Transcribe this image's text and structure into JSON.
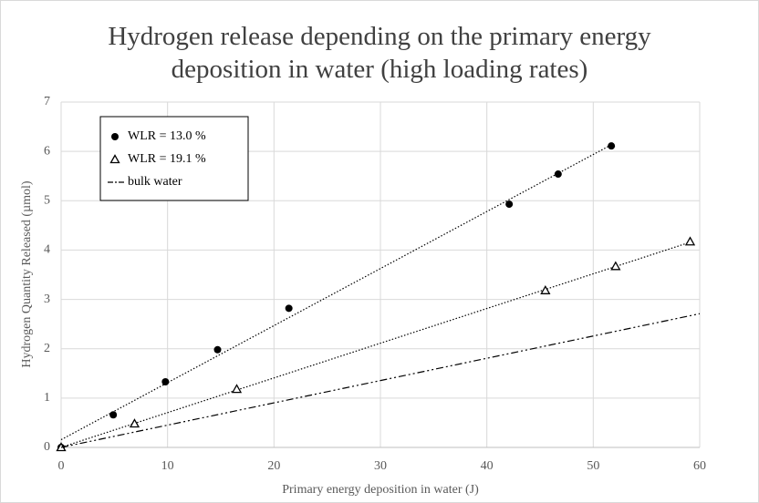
{
  "chart_data": {
    "type": "scatter",
    "title": "Hydrogen release depending on the primary energy deposition in water (high loading rates)",
    "xlabel": "Primary energy deposition in water (J)",
    "ylabel": "Hydrogen Quantity Released (µmol)",
    "xlim": [
      0,
      60
    ],
    "xticks": [
      0,
      10,
      20,
      30,
      40,
      50,
      60
    ],
    "ylim": [
      0,
      7
    ],
    "yticks": [
      0,
      1,
      2,
      3,
      4,
      5,
      6,
      7
    ],
    "grid": true,
    "legend": "top-left",
    "series": [
      {
        "name": "WLR = 13.0 %",
        "color": "#000000",
        "marker": "circle",
        "trendline": true,
        "x": [
          0,
          4.9,
          9.8,
          14.7,
          21.4,
          42.1,
          46.7,
          51.7
        ],
        "values": [
          0,
          0.66,
          1.33,
          1.98,
          2.82,
          4.93,
          5.54,
          6.11
        ]
      },
      {
        "name": "WLR = 19.1 %",
        "color": "#000000",
        "marker": "triangle",
        "trendline": true,
        "x": [
          0,
          6.9,
          16.5,
          45.5,
          52.1,
          59.1
        ],
        "values": [
          0,
          0.48,
          1.18,
          3.18,
          3.67,
          4.17
        ]
      },
      {
        "name": "bulk water",
        "color": "#000000",
        "marker": "line",
        "x": [
          0,
          60
        ],
        "values": [
          0,
          2.71
        ]
      }
    ]
  }
}
